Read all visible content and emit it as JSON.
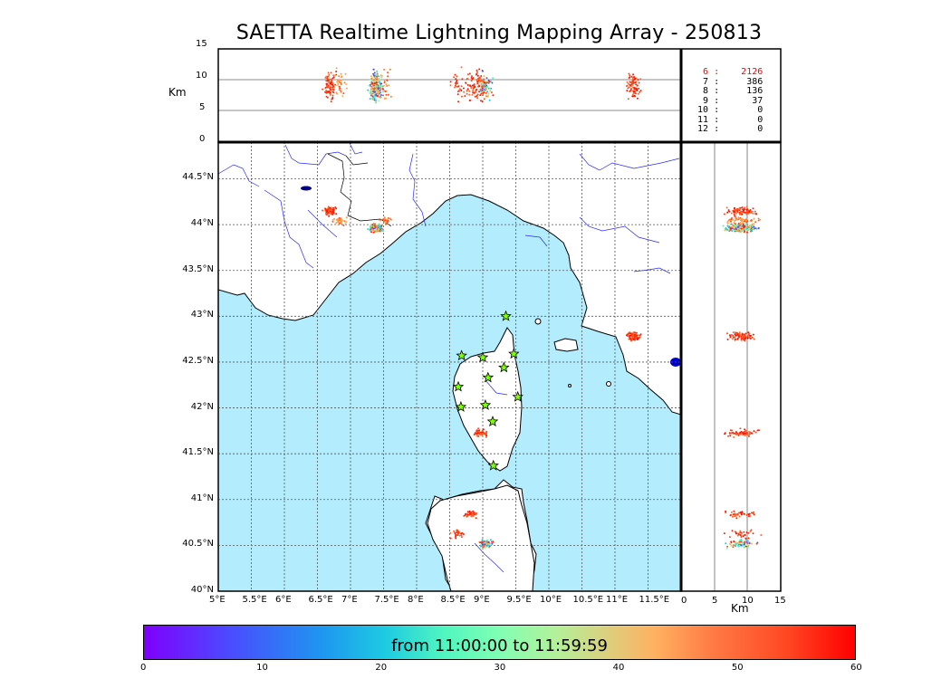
{
  "title": "SAETTA Realtime Lightning Mapping Array - 250813",
  "top_panel": {
    "ylabel": "Km",
    "y_ticks": [
      "0",
      "5",
      "10",
      "15"
    ]
  },
  "right_panel": {
    "xlabel": "Km",
    "x_ticks": [
      "0",
      "5",
      "10",
      "15"
    ]
  },
  "map": {
    "lon_ticks": [
      "5°E",
      "5.5°E",
      "6°E",
      "6.5°E",
      "7°E",
      "7.5°E",
      "8°E",
      "8.5°E",
      "9°E",
      "9.5°E",
      "10°E",
      "10.5°E",
      "11°E",
      "11.5°E"
    ],
    "lat_ticks": [
      "40°N",
      "40.5°N",
      "41°N",
      "41.5°N",
      "42°N",
      "42.5°N",
      "43°N",
      "43.5°N",
      "44°N",
      "44.5°N"
    ],
    "colors": {
      "sea": "#b3ecfd",
      "land": "#ffffff",
      "coast": "#000000",
      "rivers": "#0000ff",
      "station_marker": "#7fff00"
    },
    "stations": [
      {
        "lon": 9.35,
        "lat": 43.0
      },
      {
        "lon": 8.68,
        "lat": 42.57
      },
      {
        "lon": 9.0,
        "lat": 42.55
      },
      {
        "lon": 9.47,
        "lat": 42.59
      },
      {
        "lon": 9.32,
        "lat": 42.44
      },
      {
        "lon": 9.08,
        "lat": 42.33
      },
      {
        "lon": 8.63,
        "lat": 42.23
      },
      {
        "lon": 9.53,
        "lat": 42.12
      },
      {
        "lon": 8.67,
        "lat": 42.01
      },
      {
        "lon": 9.04,
        "lat": 42.03
      },
      {
        "lon": 9.15,
        "lat": 41.85
      },
      {
        "lon": 9.16,
        "lat": 41.37
      }
    ],
    "lightning_clusters": [
      {
        "lon": 6.68,
        "lat": 44.15,
        "n": 45,
        "color_mix": "red"
      },
      {
        "lon": 6.85,
        "lat": 44.04,
        "n": 18,
        "color_mix": "orange"
      },
      {
        "lon": 7.38,
        "lat": 43.96,
        "n": 120,
        "color_mix": "mixed"
      },
      {
        "lon": 7.55,
        "lat": 44.05,
        "n": 12,
        "color_mix": "orange"
      },
      {
        "lon": 8.97,
        "lat": 41.73,
        "n": 30,
        "color_mix": "red"
      },
      {
        "lon": 11.28,
        "lat": 42.78,
        "n": 40,
        "color_mix": "red"
      },
      {
        "lon": 8.82,
        "lat": 40.85,
        "n": 20,
        "color_mix": "red"
      },
      {
        "lon": 8.62,
        "lat": 40.62,
        "n": 14,
        "color_mix": "red"
      },
      {
        "lon": 9.05,
        "lat": 40.52,
        "n": 35,
        "color_mix": "mixed"
      }
    ]
  },
  "station_counts": [
    {
      "label": "6",
      "value": "2126",
      "color": "#ff0000"
    },
    {
      "label": "7",
      "value": "386",
      "color": "#000000"
    },
    {
      "label": "8",
      "value": "136",
      "color": "#000000"
    },
    {
      "label": "9",
      "value": "37",
      "color": "#000000"
    },
    {
      "label": "10",
      "value": "0",
      "color": "#000000"
    },
    {
      "label": "11",
      "value": "0",
      "color": "#000000"
    },
    {
      "label": "12",
      "value": "0",
      "color": "#000000"
    }
  ],
  "colorbar": {
    "label": "from 11:00:00 to 11:59:59",
    "ticks": [
      "0",
      "10",
      "20",
      "30",
      "40",
      "50",
      "60"
    ]
  }
}
